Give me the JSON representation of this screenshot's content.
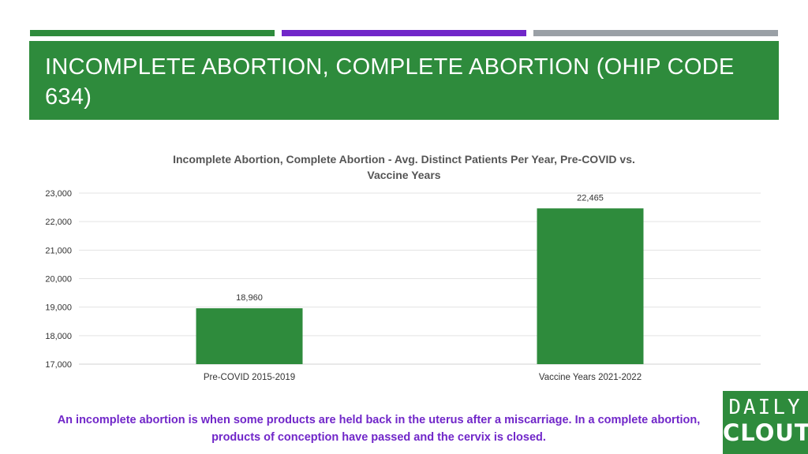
{
  "slide": {
    "title": "INCOMPLETE ABORTION, COMPLETE ABORTION (OHIP CODE 634)",
    "caption": "An incomplete abortion is when some products are held back in the uterus after a miscarriage. In a complete abortion, products of conception have passed and the cervix is closed.",
    "logo": {
      "line1": "DAILY",
      "line2": "CLOUT"
    },
    "colors": {
      "green": "#2e8b3c",
      "purple": "#7127c9",
      "gray": "#9aa0a6"
    }
  },
  "chart_data": {
    "type": "bar",
    "title": "Incomplete Abortion, Complete Abortion - Avg. Distinct Patients Per Year, Pre-COVID vs. Vaccine Years",
    "title_lines": [
      "Incomplete Abortion, Complete Abortion - Avg. Distinct Patients Per Year, Pre-COVID vs.",
      "Vaccine Years"
    ],
    "categories": [
      "Pre-COVID 2015-2019",
      "Vaccine Years 2021-2022"
    ],
    "values": [
      18960,
      22465
    ],
    "value_labels": [
      "18,960",
      "22,465"
    ],
    "ylim": [
      17000,
      23000
    ],
    "yticks": [
      17000,
      18000,
      19000,
      20000,
      21000,
      22000,
      23000
    ],
    "ytick_labels": [
      "17,000",
      "18,000",
      "19,000",
      "20,000",
      "21,000",
      "22,000",
      "23,000"
    ],
    "xlabel": "",
    "ylabel": "",
    "grid": true,
    "bar_color": "#2e8b3c"
  }
}
